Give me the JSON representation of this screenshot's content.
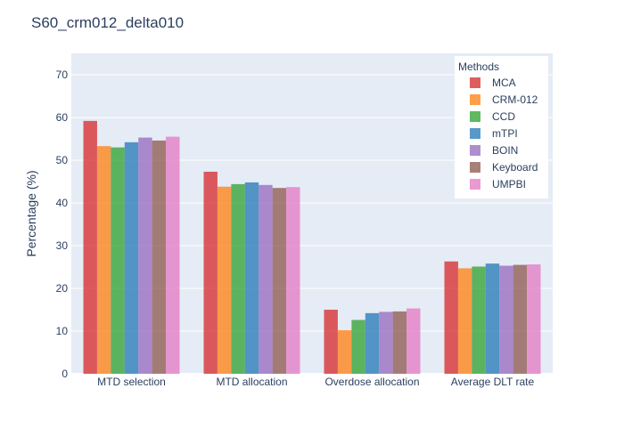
{
  "chart_data": {
    "type": "bar",
    "title": "S60_crm012_delta010",
    "xlabel": "",
    "ylabel": "Percentage (%)",
    "ylim": [
      0,
      75
    ],
    "yticks": [
      0,
      10,
      20,
      30,
      40,
      50,
      60,
      70
    ],
    "grid": true,
    "legend_title": "Methods",
    "legend_position": "top-right",
    "categories": [
      "MTD selection",
      "MTD allocation",
      "Overdose allocation",
      "Average DLT rate"
    ],
    "series": [
      {
        "name": "MCA",
        "color": "#d62728",
        "values": [
          59.2,
          47.3,
          15.0,
          26.3
        ]
      },
      {
        "name": "CRM-012",
        "color": "#ff7f0e",
        "values": [
          53.3,
          43.8,
          10.2,
          24.7
        ]
      },
      {
        "name": "CCD",
        "color": "#2ca02c",
        "values": [
          53.0,
          44.4,
          12.6,
          25.1
        ]
      },
      {
        "name": "mTPI",
        "color": "#1f77b4",
        "values": [
          54.2,
          44.8,
          14.2,
          25.8
        ]
      },
      {
        "name": "BOIN",
        "color": "#9467bd",
        "values": [
          55.3,
          44.2,
          14.5,
          25.3
        ]
      },
      {
        "name": "Keyboard",
        "color": "#8c564b",
        "values": [
          54.6,
          43.5,
          14.6,
          25.5
        ]
      },
      {
        "name": "UMPBI",
        "color": "#e377c2",
        "values": [
          55.5,
          43.7,
          15.3,
          25.6
        ]
      }
    ]
  }
}
